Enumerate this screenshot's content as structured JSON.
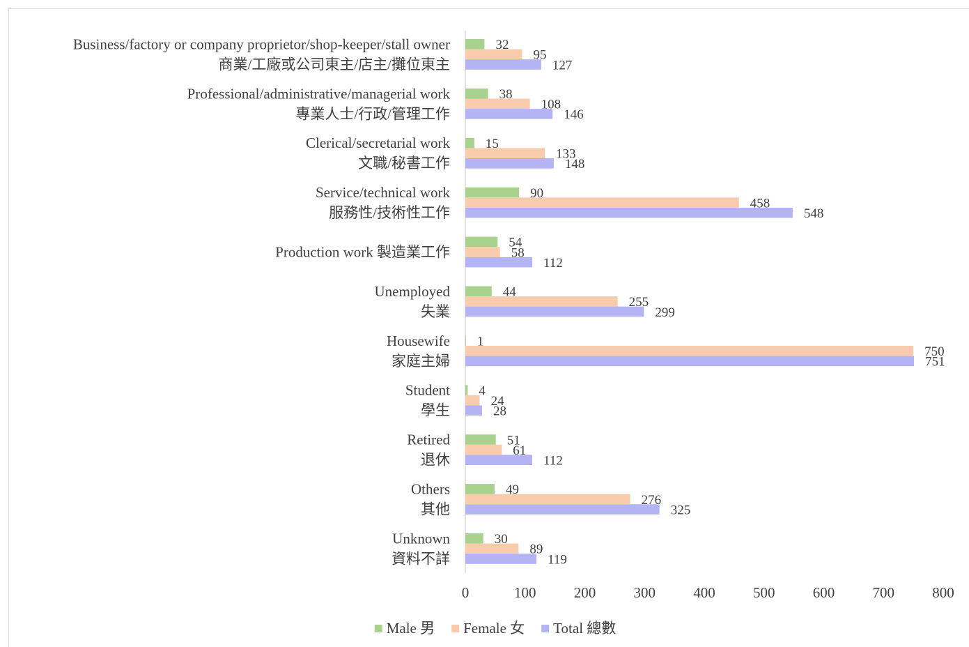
{
  "chart_data": {
    "type": "bar",
    "orientation": "horizontal",
    "categories": [
      [
        "Business/factory or company proprietor/shop-keeper/stall owner",
        "商業/工廠或公司東主/店主/攤位東主"
      ],
      [
        "Professional/administrative/managerial work",
        "專業人士/行政/管理工作"
      ],
      [
        "Clerical/secretarial work",
        "文職/秘書工作"
      ],
      [
        "Service/technical work",
        "服務性/技術性工作"
      ],
      [
        "Production work 製造業工作"
      ],
      [
        "Unemployed",
        "失業"
      ],
      [
        "Housewife",
        "家庭主婦"
      ],
      [
        "Student",
        "學生"
      ],
      [
        "Retired",
        "退休"
      ],
      [
        "Others",
        "其他"
      ],
      [
        "Unknown",
        "資料不詳"
      ]
    ],
    "series": [
      {
        "name": "Male 男",
        "color": "#a9d18e",
        "values": [
          32,
          38,
          15,
          90,
          54,
          44,
          1,
          4,
          51,
          49,
          30
        ]
      },
      {
        "name": "Female 女",
        "color": "#f8cbad",
        "values": [
          95,
          108,
          133,
          458,
          58,
          255,
          750,
          24,
          61,
          276,
          89
        ]
      },
      {
        "name": "Total 總數",
        "color": "#b4b4f5",
        "values": [
          127,
          146,
          148,
          548,
          112,
          299,
          751,
          28,
          112,
          325,
          119
        ]
      }
    ],
    "xlim": [
      0,
      800
    ],
    "xticks": [
      0,
      100,
      200,
      300,
      400,
      500,
      600,
      700,
      800
    ],
    "grid": false,
    "legend_position": "bottom",
    "title": "",
    "xlabel": "",
    "ylabel": ""
  }
}
